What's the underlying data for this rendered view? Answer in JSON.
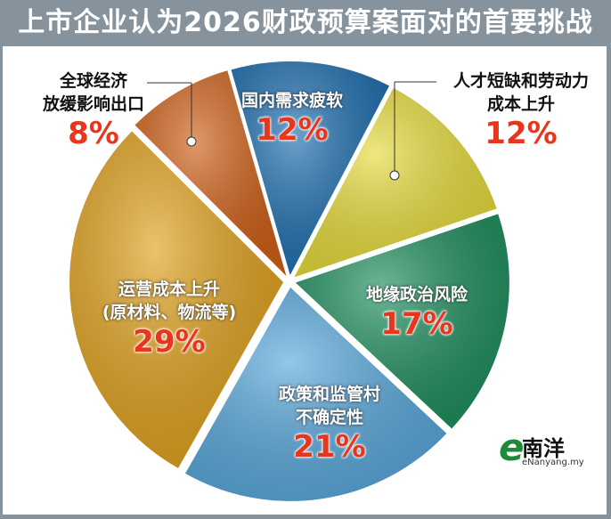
{
  "header": {
    "title": "上市企业认为2026财政预算案面对的首要挑战"
  },
  "logo": {
    "mark": "e南洋",
    "name": "南洋",
    "url": "eNanyang.my"
  },
  "chart_data": {
    "type": "pie",
    "title": "上市企业认为2026财政预算案面对的首要挑战",
    "slices": [
      {
        "label": "国内需求疲软",
        "line1": "国内需求疲软",
        "line2": "",
        "value": 12,
        "pct": "12%",
        "color": "#1f6fb0"
      },
      {
        "label": "人才短缺和劳动力成本上升",
        "line1": "人才短缺和劳动力",
        "line2": "成本上升",
        "value": 12,
        "pct": "12%",
        "color": "#e6dc3c"
      },
      {
        "label": "地缘政治风险",
        "line1": "地缘政治风险",
        "line2": "",
        "value": 17,
        "pct": "17%",
        "color": "#1f8f5e"
      },
      {
        "label": "政策和监管村不确定性",
        "line1": "政策和监管村",
        "line2": "不确定性",
        "value": 21,
        "pct": "21%",
        "color": "#5aa9dc"
      },
      {
        "label": "运营成本上升(原材料、物流等)",
        "line1": "运营成本上升",
        "line2": "(原材料、物流等)",
        "value": 29,
        "pct": "29%",
        "color": "#e0a21e"
      },
      {
        "label": "全球经济放缓影响出口",
        "line1": "全球经济",
        "line2": "放缓影响出口",
        "value": 8,
        "pct": "8%",
        "color": "#d0621a"
      }
    ]
  }
}
